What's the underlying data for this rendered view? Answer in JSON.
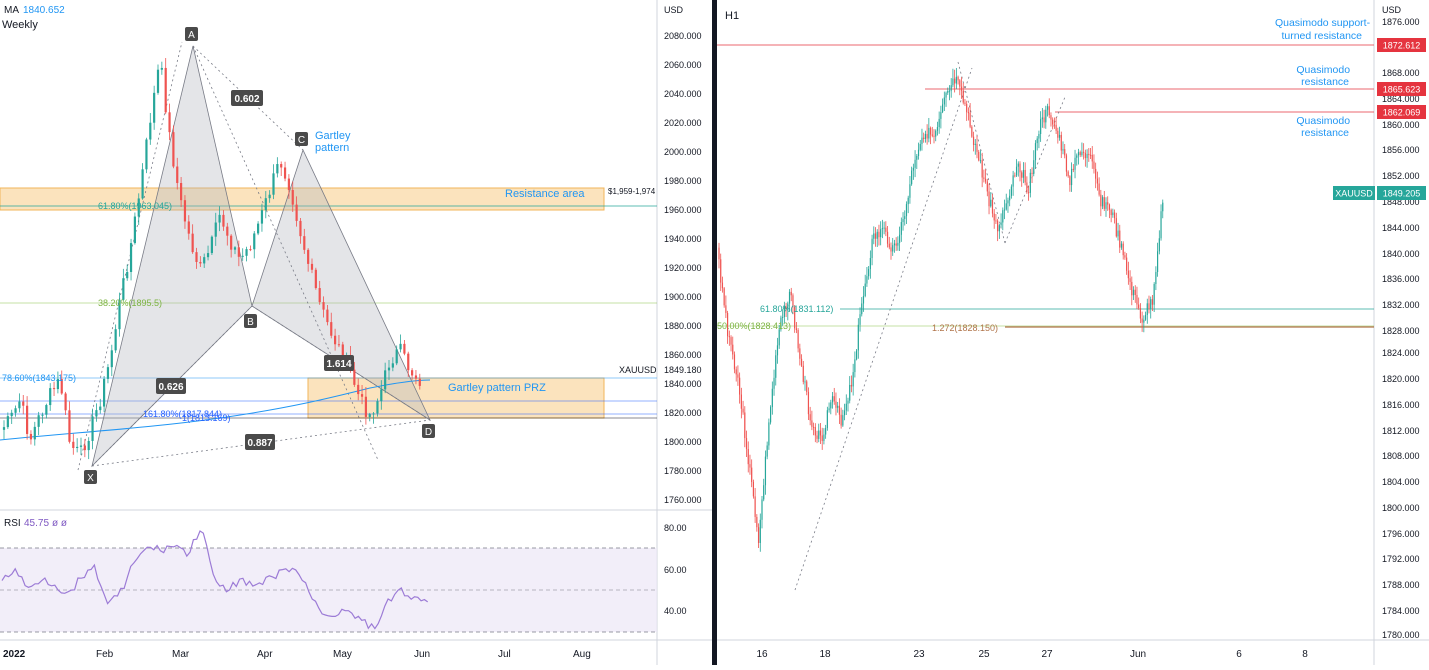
{
  "left": {
    "indicator_label": "MA",
    "indicator_value": "1840.652",
    "timeframe": "Weekly",
    "axis_currency": "USD",
    "price_ticks": [
      "2080.000",
      "2060.000",
      "2040.000",
      "2020.000",
      "2000.000",
      "1980.000",
      "1960.000",
      "1940.000",
      "1920.000",
      "1900.000",
      "1880.000",
      "1860.000",
      "1840.000",
      "1820.000",
      "1800.000",
      "1780.000",
      "1760.000"
    ],
    "date_ticks": [
      "2022",
      "Feb",
      "Mar",
      "Apr",
      "May",
      "Jun",
      "Jul",
      "Aug"
    ],
    "symbol_label": "XAUUSD",
    "current_price": "1849.180",
    "resistance_range_label": "$1,959-1,974",
    "zones": {
      "resistance": "Resistance area",
      "prz": "Gartley pattern PRZ"
    },
    "pattern_title": "Gartley\npattern",
    "pattern_title_lines": [
      "Gartley",
      "pattern"
    ],
    "points": [
      "X",
      "A",
      "B",
      "C",
      "D"
    ],
    "ratios": [
      "0.602",
      "0.626",
      "1.614",
      "0.887"
    ],
    "fib_labels": [
      "61.80%(1963.045)",
      "38.20%(1895.5)",
      "78.60%(1843.175)",
      "161.80%(1817.844)",
      "1(1813.169)"
    ],
    "rsi": {
      "label": "RSI",
      "value": "45.75",
      "extra": "ø ø",
      "ticks": [
        "80.00",
        "60.00",
        "40.00"
      ]
    }
  },
  "right": {
    "timeframe": "H1",
    "axis_currency": "USD",
    "price_ticks": [
      "1876.000",
      "1868.000",
      "1864.000",
      "1860.000",
      "1856.000",
      "1852.000",
      "1848.000",
      "1844.000",
      "1840.000",
      "1836.000",
      "1832.000",
      "1828.000",
      "1824.000",
      "1820.000",
      "1816.000",
      "1812.000",
      "1808.000",
      "1804.000",
      "1800.000",
      "1796.000",
      "1792.000",
      "1788.000",
      "1784.000",
      "1780.000"
    ],
    "date_ticks": [
      "16",
      "18",
      "23",
      "25",
      "27",
      "Jun",
      "6",
      "8"
    ],
    "levels": [
      {
        "label_lines": [
          "Quasimodo support-",
          "turned resistance"
        ],
        "price": "1872.612",
        "color": "#e5343f"
      },
      {
        "label_lines": [
          "Quasimodo",
          "resistance"
        ],
        "price": "1865.623",
        "color": "#e5343f"
      },
      {
        "label_lines": [
          "Quasimodo",
          "resistance"
        ],
        "price": "1862.069",
        "color": "#e5343f"
      }
    ],
    "symbol": "XAUUSD",
    "current_price": "1849.205",
    "fib_labels": [
      "61.80%(1831.112)",
      "50.00%(1828.413)",
      "1.272(1828.150)"
    ]
  },
  "colors": {
    "up": "#26a69a",
    "down": "#ef5350",
    "accent_blue": "#2196f3",
    "zone": "#f5d8a8",
    "rsi": "#9c7bd6"
  }
}
